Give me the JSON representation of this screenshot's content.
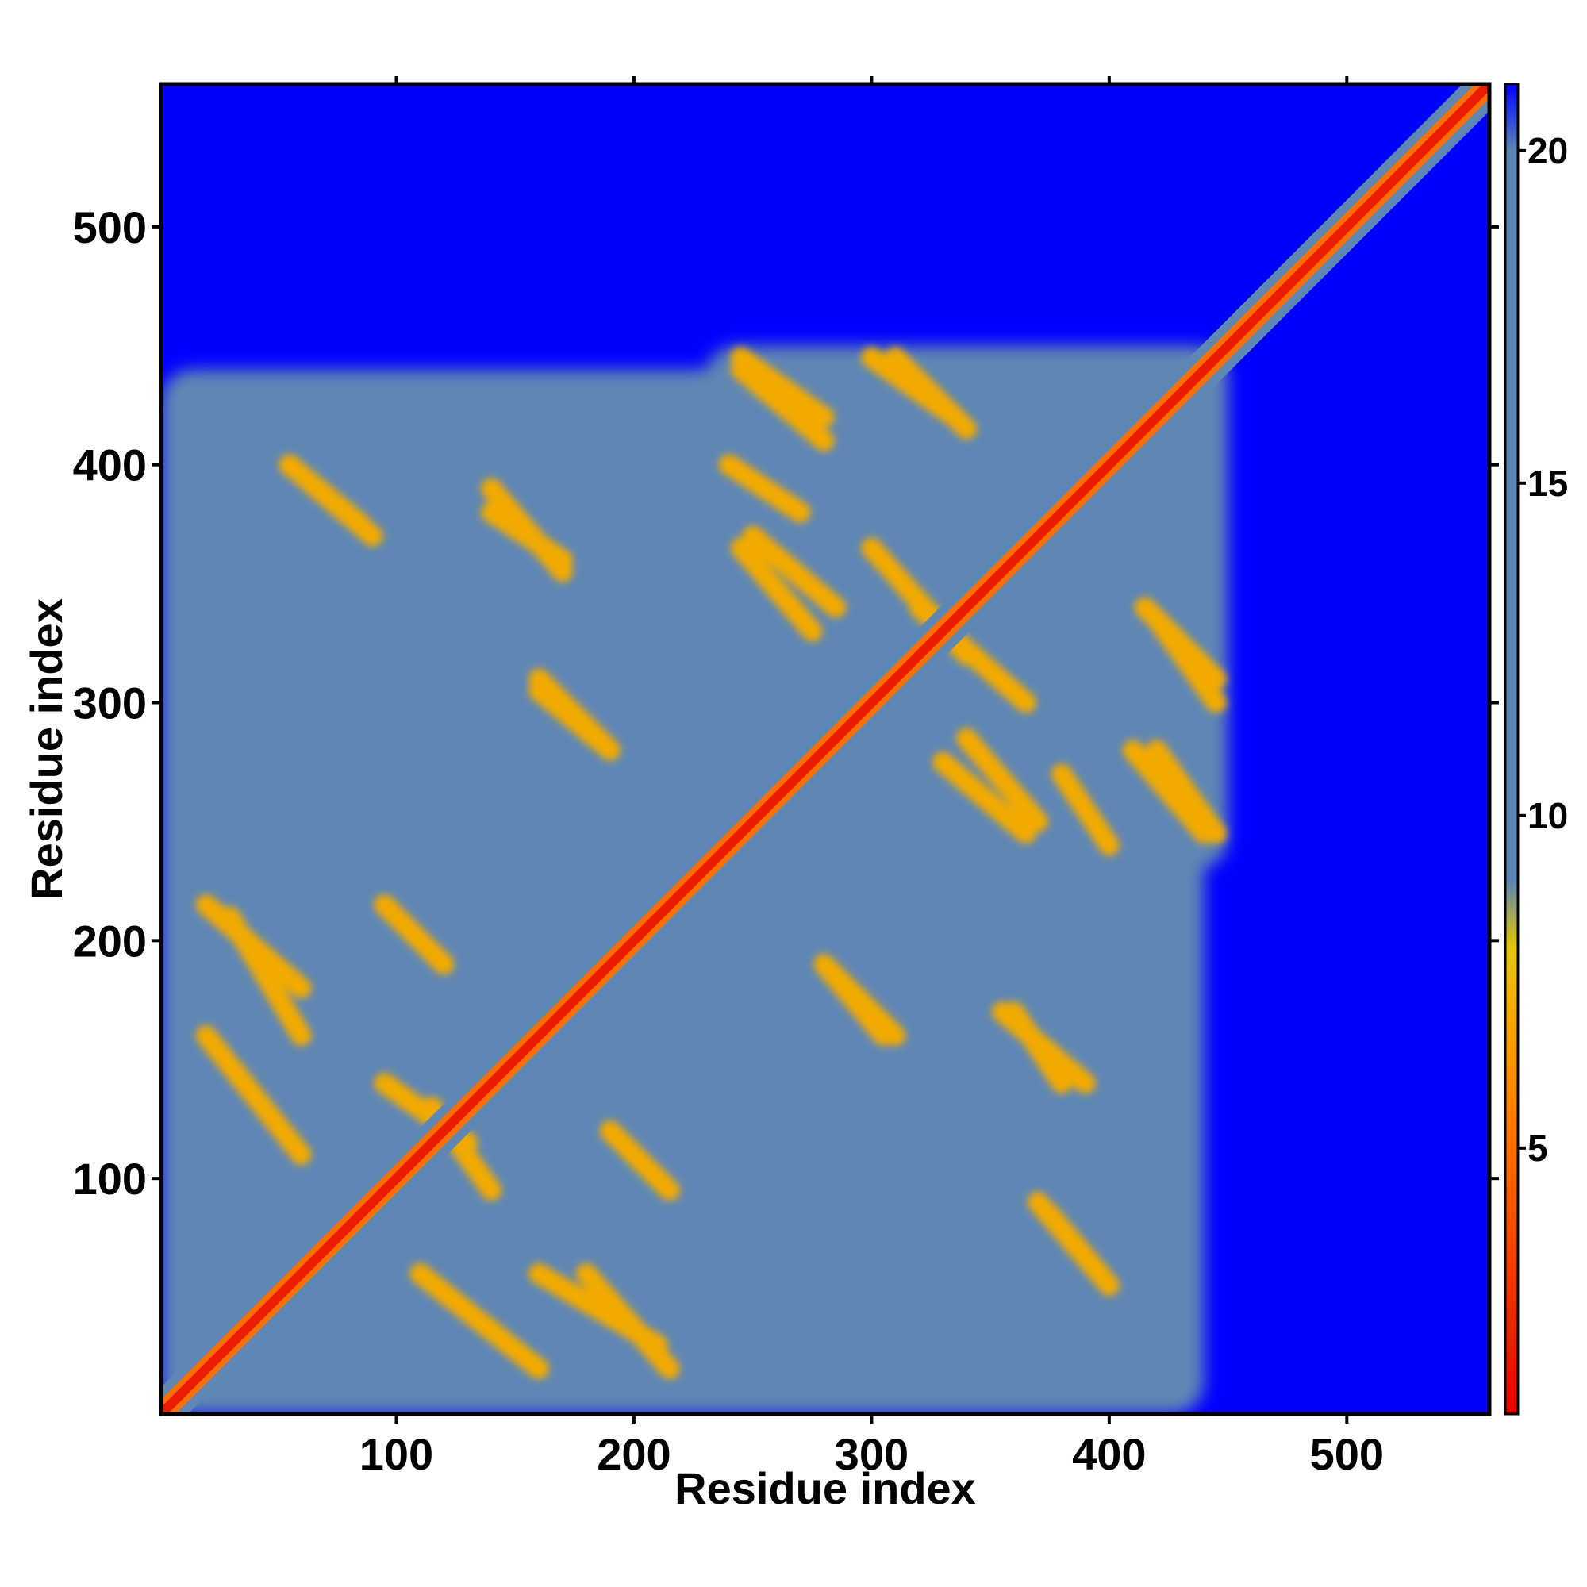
{
  "chart_data": {
    "type": "heatmap",
    "title": "",
    "xlabel": "Residue index",
    "ylabel": "Residue index",
    "xlim": [
      1,
      560
    ],
    "ylim": [
      1,
      560
    ],
    "x_ticks": [
      100,
      200,
      300,
      400,
      500
    ],
    "y_ticks": [
      100,
      200,
      300,
      400,
      500
    ],
    "colorbar": {
      "ticks": [
        5,
        10,
        15,
        20
      ],
      "range": [
        1,
        21
      ],
      "colors": {
        "low": "#e60000",
        "mid_low": "#ff8c00",
        "mid": "#e6c800",
        "mid_high": "#5f87b4",
        "high": "#0000ff"
      }
    },
    "background_value": 21,
    "diagonal_value": 2,
    "contact_regions": [
      {
        "x": [
          1,
          440
        ],
        "y": [
          1,
          440
        ],
        "value": 13
      },
      {
        "x": [
          60,
          230
        ],
        "y": [
          60,
          230
        ],
        "value": 13
      },
      {
        "x": [
          230,
          450
        ],
        "y": [
          230,
          450
        ],
        "value": 13
      }
    ],
    "secondary_stripes": [
      {
        "from": [
          20,
          215
        ],
        "to": [
          60,
          180
        ],
        "value": 7
      },
      {
        "from": [
          20,
          160
        ],
        "to": [
          60,
          110
        ],
        "value": 7
      },
      {
        "from": [
          55,
          400
        ],
        "to": [
          90,
          370
        ],
        "value": 7
      },
      {
        "from": [
          140,
          390
        ],
        "to": [
          170,
          355
        ],
        "value": 7
      },
      {
        "from": [
          160,
          310
        ],
        "to": [
          190,
          280
        ],
        "value": 7
      },
      {
        "from": [
          95,
          215
        ],
        "to": [
          120,
          190
        ],
        "value": 7
      },
      {
        "from": [
          190,
          120
        ],
        "to": [
          215,
          95
        ],
        "value": 7
      },
      {
        "from": [
          280,
          190
        ],
        "to": [
          305,
          160
        ],
        "value": 7
      },
      {
        "from": [
          360,
          170
        ],
        "to": [
          380,
          140
        ],
        "value": 7
      },
      {
        "from": [
          375,
          85
        ],
        "to": [
          400,
          55
        ],
        "value": 7
      },
      {
        "from": [
          245,
          440
        ],
        "to": [
          280,
          410
        ],
        "value": 7
      },
      {
        "from": [
          310,
          445
        ],
        "to": [
          340,
          415
        ],
        "value": 7
      },
      {
        "from": [
          245,
          365
        ],
        "to": [
          275,
          330
        ],
        "value": 7
      },
      {
        "from": [
          420,
          335
        ],
        "to": [
          445,
          300
        ],
        "value": 7
      },
      {
        "from": [
          420,
          280
        ],
        "to": [
          445,
          245
        ],
        "value": 7
      },
      {
        "from": [
          160,
          60
        ],
        "to": [
          210,
          30
        ],
        "value": 7
      },
      {
        "from": [
          115,
          130
        ],
        "to": [
          140,
          95
        ],
        "value": 7
      },
      {
        "from": [
          300,
          365
        ],
        "to": [
          340,
          320
        ],
        "value": 7
      },
      {
        "from": [
          340,
          285
        ],
        "to": [
          370,
          250
        ],
        "value": 7
      },
      {
        "from": [
          380,
          270
        ],
        "to": [
          400,
          240
        ],
        "value": 7
      }
    ]
  }
}
